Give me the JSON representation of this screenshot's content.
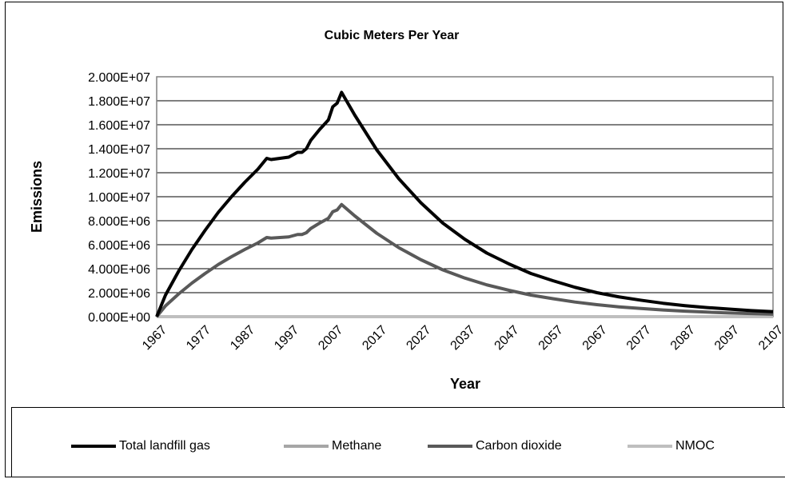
{
  "chart_data": {
    "type": "line",
    "title": "Cubic Meters Per Year",
    "xlabel": "Year",
    "ylabel": "Emissions",
    "xlim": [
      1967,
      2107
    ],
    "ylim": [
      0,
      20000000
    ],
    "x_ticks": [
      "1967",
      "1977",
      "1987",
      "1997",
      "2007",
      "2017",
      "2027",
      "2037",
      "2047",
      "2057",
      "2067",
      "2077",
      "2087",
      "2097",
      "2107"
    ],
    "y_ticks": [
      "0.000E+00",
      "2.000E+06",
      "4.000E+06",
      "6.000E+06",
      "8.000E+06",
      "1.000E+07",
      "1.200E+07",
      "1.400E+07",
      "1.600E+07",
      "1.800E+07",
      "2.000E+07"
    ],
    "grid": "horizontal",
    "legend_position": "bottom",
    "series": [
      {
        "name": "Total landfill gas",
        "color": "#000000",
        "points": [
          [
            1967,
            0
          ],
          [
            1969,
            1800000
          ],
          [
            1972,
            3800000
          ],
          [
            1975,
            5600000
          ],
          [
            1978,
            7200000
          ],
          [
            1981,
            8700000
          ],
          [
            1984,
            10000000
          ],
          [
            1987,
            11200000
          ],
          [
            1990,
            12300000
          ],
          [
            1992,
            13200000
          ],
          [
            1993,
            13100000
          ],
          [
            1995,
            13200000
          ],
          [
            1997,
            13300000
          ],
          [
            1999,
            13700000
          ],
          [
            2000,
            13700000
          ],
          [
            2001,
            14000000
          ],
          [
            2002,
            14700000
          ],
          [
            2004,
            15600000
          ],
          [
            2006,
            16400000
          ],
          [
            2007,
            17500000
          ],
          [
            2008,
            17800000
          ],
          [
            2009,
            18700000
          ],
          [
            2012,
            16800000
          ],
          [
            2017,
            13900000
          ],
          [
            2022,
            11500000
          ],
          [
            2027,
            9500000
          ],
          [
            2032,
            7800000
          ],
          [
            2037,
            6450000
          ],
          [
            2042,
            5300000
          ],
          [
            2047,
            4400000
          ],
          [
            2052,
            3600000
          ],
          [
            2057,
            3000000
          ],
          [
            2062,
            2450000
          ],
          [
            2067,
            2000000
          ],
          [
            2072,
            1650000
          ],
          [
            2077,
            1370000
          ],
          [
            2082,
            1120000
          ],
          [
            2087,
            920000
          ],
          [
            2092,
            760000
          ],
          [
            2097,
            630000
          ],
          [
            2102,
            510000
          ],
          [
            2107,
            420000
          ]
        ]
      },
      {
        "name": "Methane",
        "color": "#a6a6a6",
        "points": [
          [
            1967,
            0
          ],
          [
            2107,
            0
          ]
        ]
      },
      {
        "name": "Carbon dioxide",
        "color": "#595959",
        "points": [
          [
            1967,
            0
          ],
          [
            1969,
            900000
          ],
          [
            1972,
            1900000
          ],
          [
            1975,
            2800000
          ],
          [
            1978,
            3600000
          ],
          [
            1981,
            4350000
          ],
          [
            1984,
            5000000
          ],
          [
            1987,
            5600000
          ],
          [
            1990,
            6150000
          ],
          [
            1992,
            6600000
          ],
          [
            1993,
            6550000
          ],
          [
            1995,
            6600000
          ],
          [
            1997,
            6650000
          ],
          [
            1999,
            6850000
          ],
          [
            2000,
            6850000
          ],
          [
            2001,
            7000000
          ],
          [
            2002,
            7350000
          ],
          [
            2004,
            7800000
          ],
          [
            2006,
            8200000
          ],
          [
            2007,
            8750000
          ],
          [
            2008,
            8900000
          ],
          [
            2009,
            9350000
          ],
          [
            2012,
            8400000
          ],
          [
            2017,
            6950000
          ],
          [
            2022,
            5750000
          ],
          [
            2027,
            4750000
          ],
          [
            2032,
            3900000
          ],
          [
            2037,
            3220000
          ],
          [
            2042,
            2650000
          ],
          [
            2047,
            2200000
          ],
          [
            2052,
            1800000
          ],
          [
            2057,
            1500000
          ],
          [
            2062,
            1220000
          ],
          [
            2067,
            1000000
          ],
          [
            2072,
            820000
          ],
          [
            2077,
            680000
          ],
          [
            2082,
            560000
          ],
          [
            2087,
            460000
          ],
          [
            2092,
            380000
          ],
          [
            2097,
            310000
          ],
          [
            2102,
            255000
          ],
          [
            2107,
            210000
          ]
        ]
      },
      {
        "name": "NMOC",
        "color": "#bfbfbf",
        "points": [
          [
            1967,
            0
          ],
          [
            2107,
            0
          ]
        ]
      }
    ]
  }
}
